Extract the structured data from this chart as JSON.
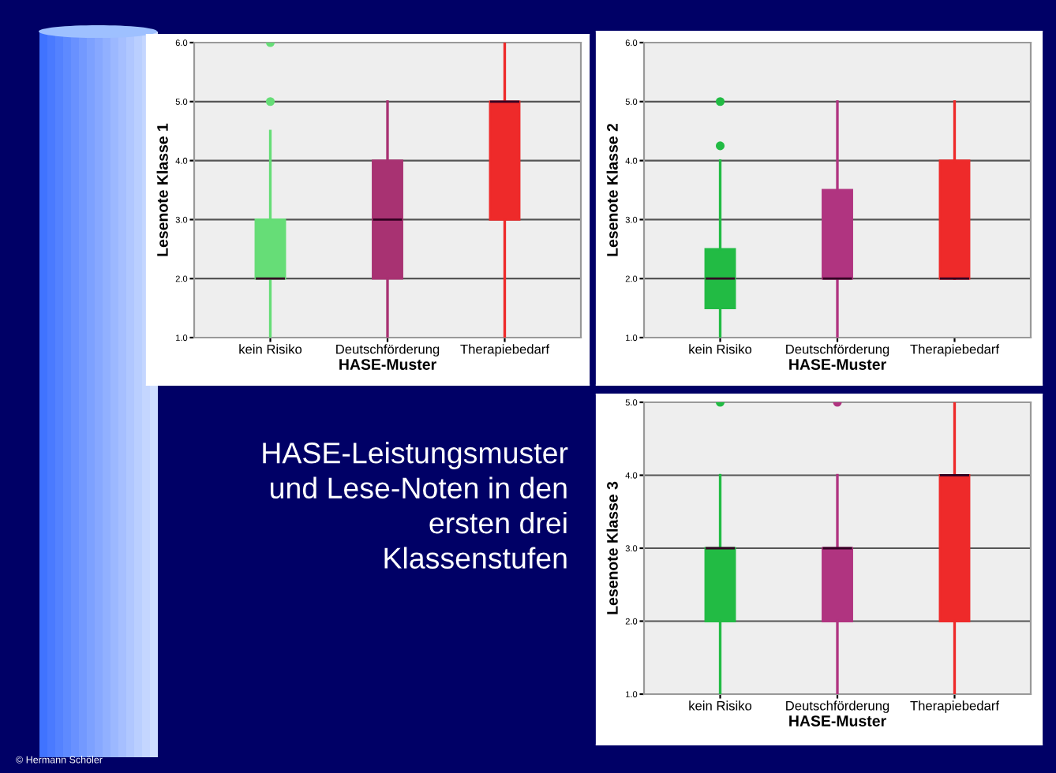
{
  "chart_data": [
    {
      "type": "box",
      "categories": [
        "kein Risiko",
        "Deutschförderung",
        "Therapiebedarf"
      ],
      "xlabel": "HASE-Muster",
      "ylabel": "Lesenote Klasse 1",
      "ylim": [
        1,
        6
      ],
      "yticks": [
        {
          "value": 1,
          "label": "1.0"
        },
        {
          "value": 2,
          "label": "2.0"
        },
        {
          "value": 3,
          "label": "3.0"
        },
        {
          "value": 4,
          "label": "4.0"
        },
        {
          "value": 5,
          "label": "5.0"
        },
        {
          "value": 6,
          "label": "6.0"
        }
      ],
      "grid": "y",
      "colors": [
        "#66dd77",
        "#a83272",
        "#ee2a2a"
      ],
      "boxes": [
        {
          "low": 1,
          "q1": 2,
          "median": 2,
          "q3": 3,
          "high": 4.5,
          "outliers": [
            5,
            6
          ]
        },
        {
          "low": 1,
          "q1": 2,
          "median": 3,
          "q3": 4,
          "high": 5
        },
        {
          "low": 1,
          "q1": 3,
          "median": 5,
          "q3": 5,
          "high": 6
        }
      ]
    },
    {
      "type": "box",
      "categories": [
        "kein Risiko",
        "Deutschförderung",
        "Therapiebedarf"
      ],
      "xlabel": "HASE-Muster",
      "ylabel": "Lesenote Klasse 2",
      "ylim": [
        1,
        6
      ],
      "yticks": [
        {
          "value": 1,
          "label": "1.0"
        },
        {
          "value": 2,
          "label": "2.0"
        },
        {
          "value": 3,
          "label": "3.0"
        },
        {
          "value": 4,
          "label": "4.0"
        },
        {
          "value": 5,
          "label": "5.0"
        },
        {
          "value": 6,
          "label": "6.0"
        }
      ],
      "grid": "y",
      "colors": [
        "#22bb44",
        "#b03480",
        "#ee2a2a"
      ],
      "boxes": [
        {
          "low": 1,
          "q1": 1.5,
          "median": 2,
          "q3": 2.5,
          "high": 4,
          "outliers": [
            4.25,
            5
          ]
        },
        {
          "low": 1,
          "q1": 2,
          "median": 2,
          "q3": 3.5,
          "high": 5
        },
        {
          "low": 2,
          "q1": 2,
          "median": 2,
          "q3": 4,
          "high": 5
        }
      ]
    },
    {
      "type": "box",
      "categories": [
        "kein Risiko",
        "Deutschförderung",
        "Therapiebedarf"
      ],
      "xlabel": "HASE-Muster",
      "ylabel": "Lesenote Klasse 3",
      "ylim": [
        1,
        5
      ],
      "yticks": [
        {
          "value": 1,
          "label": "1.0"
        },
        {
          "value": 2,
          "label": "2.0"
        },
        {
          "value": 3,
          "label": "3.0"
        },
        {
          "value": 4,
          "label": "4.0"
        },
        {
          "value": 5,
          "label": "5.0"
        }
      ],
      "grid": "y",
      "colors": [
        "#22bb44",
        "#b03480",
        "#ee2a2a"
      ],
      "boxes": [
        {
          "low": 1,
          "q1": 2,
          "median": 3,
          "q3": 3,
          "high": 4,
          "outliers": [
            5
          ]
        },
        {
          "low": 1,
          "q1": 2,
          "median": 3,
          "q3": 3,
          "high": 4,
          "outliers": [
            5
          ]
        },
        {
          "low": 1,
          "q1": 2,
          "median": 4,
          "q3": 4,
          "high": 5
        }
      ]
    },
    {
      "type": "other",
      "title": "HASE-Leistungsmuster\nund Lese-Noten in den\nersten drei\nKlassenstufen",
      "annotations": [
        "© Hermann Schöler"
      ]
    }
  ]
}
